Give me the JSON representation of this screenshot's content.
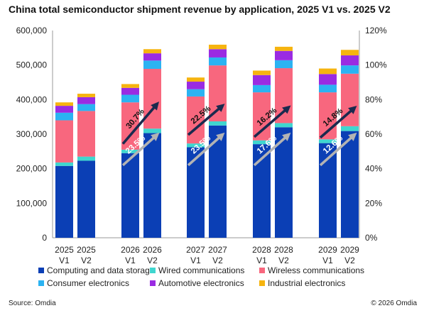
{
  "title": "China total semiconductor shipment revenue by application, 2025 V1 vs. 2025 V2",
  "source": "Source: Omdia",
  "copyright": "© 2026 Omdia",
  "chart_data": {
    "type": "bar",
    "stacked": true,
    "categories": [
      [
        "2025",
        "V1"
      ],
      [
        "2025",
        "V2"
      ],
      [
        "2026",
        "V1"
      ],
      [
        "2026",
        "V2"
      ],
      [
        "2027",
        "V1"
      ],
      [
        "2027",
        "V2"
      ],
      [
        "2028",
        "V1"
      ],
      [
        "2028",
        "V2"
      ],
      [
        "2029",
        "V1"
      ],
      [
        "2029",
        "V2"
      ]
    ],
    "series": [
      {
        "name": "Computing and data storage",
        "color": "#0b3fb5",
        "values": [
          208000,
          223000,
          245000,
          303000,
          262000,
          325000,
          271000,
          320000,
          274000,
          309000
        ]
      },
      {
        "name": "Wired communications",
        "color": "#3fd6cf",
        "values": [
          10000,
          12000,
          10000,
          13000,
          11000,
          12000,
          11000,
          12000,
          11000,
          14000
        ]
      },
      {
        "name": "Wireless communications",
        "color": "#f8677e",
        "values": [
          122000,
          132000,
          137000,
          173000,
          136000,
          162000,
          139000,
          159000,
          136000,
          152000
        ]
      },
      {
        "name": "Consumer electronics",
        "color": "#2bb3f2",
        "values": [
          22000,
          20000,
          22000,
          24000,
          21000,
          23000,
          21000,
          23000,
          22000,
          24000
        ]
      },
      {
        "name": "Automotive electronics",
        "color": "#9a2be2",
        "values": [
          20000,
          20000,
          20000,
          21000,
          22000,
          24000,
          29000,
          27000,
          31000,
          29000
        ]
      },
      {
        "name": "Industrial electronics",
        "color": "#f6b40f",
        "values": [
          10000,
          10000,
          11000,
          12000,
          12000,
          13000,
          13000,
          12000,
          16000,
          16000
        ]
      }
    ],
    "ylim": [
      0,
      600000
    ],
    "y_ticks": [
      "0",
      "100,000",
      "200,000",
      "300,000",
      "400,000",
      "500,000",
      "600,000"
    ],
    "y2lim": [
      0,
      120
    ],
    "y2_ticks": [
      "0%",
      "20%",
      "40%",
      "60%",
      "80%",
      "100%",
      "120%"
    ],
    "grid": false,
    "legend_position": "bottom",
    "annotations": [
      {
        "year": "2026",
        "growth": "23.5%",
        "kind": "gray-arrow",
        "y_from": 210000,
        "y_to": 298000
      },
      {
        "year": "2026",
        "growth": "30.7%",
        "kind": "navy-arrow",
        "y_from": 272000,
        "y_to": 387000
      },
      {
        "year": "2027",
        "growth": "23.5%",
        "kind": "gray-arrow",
        "y_from": 210000,
        "y_to": 298000
      },
      {
        "year": "2027",
        "growth": "22.5%",
        "kind": "navy-arrow",
        "y_from": 298000,
        "y_to": 382000
      },
      {
        "year": "2028",
        "growth": "17.6%",
        "kind": "gray-arrow",
        "y_from": 210000,
        "y_to": 298000
      },
      {
        "year": "2028",
        "growth": "16.2%",
        "kind": "navy-arrow",
        "y_from": 292000,
        "y_to": 377000
      },
      {
        "year": "2029",
        "growth": "12.6%",
        "kind": "gray-arrow",
        "y_from": 210000,
        "y_to": 298000
      },
      {
        "year": "2029",
        "growth": "14.8%",
        "kind": "navy-arrow",
        "y_from": 290000,
        "y_to": 376000
      }
    ]
  }
}
